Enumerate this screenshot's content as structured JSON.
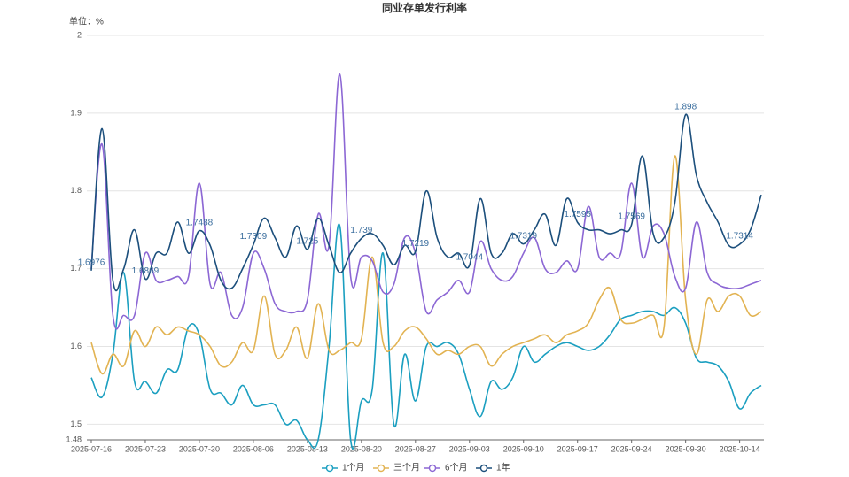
{
  "chart_data": {
    "type": "line",
    "title": "同业存单发行利率",
    "y_label": "单位：%",
    "categories": [
      "2025-07-16",
      null,
      null,
      null,
      null,
      "2025-07-23",
      null,
      null,
      null,
      null,
      "2025-07-30",
      null,
      null,
      null,
      null,
      "2025-08-06",
      null,
      null,
      null,
      null,
      "2025-08-13",
      null,
      null,
      null,
      null,
      "2025-08-20",
      null,
      null,
      null,
      null,
      "2025-08-27",
      null,
      null,
      null,
      null,
      "2025-09-03",
      null,
      null,
      null,
      null,
      "2025-09-10",
      null,
      null,
      null,
      null,
      "2025-09-17",
      null,
      null,
      null,
      null,
      "2025-09-24",
      null,
      null,
      null,
      null,
      "2025-09-30",
      null,
      null,
      null,
      null,
      "2025-10-14",
      null,
      null
    ],
    "series": [
      {
        "name": "1个月",
        "color": "#1b9fc0",
        "values": [
          1.56,
          1.535,
          1.59,
          1.695,
          1.555,
          1.555,
          1.54,
          1.57,
          1.57,
          1.625,
          1.615,
          1.545,
          1.54,
          1.525,
          1.55,
          1.525,
          1.525,
          1.525,
          1.5,
          1.505,
          1.48,
          1.48,
          1.6,
          1.755,
          1.48,
          1.53,
          1.545,
          1.72,
          1.5,
          1.59,
          1.53,
          1.6,
          1.6,
          1.605,
          1.59,
          1.545,
          1.51,
          1.555,
          1.545,
          1.56,
          1.6,
          1.58,
          1.59,
          1.6,
          1.605,
          1.6,
          1.595,
          1.6,
          1.615,
          1.635,
          1.64,
          1.645,
          1.645,
          1.64,
          1.65,
          1.63,
          1.585,
          1.58,
          1.575,
          1.555,
          1.52,
          1.54,
          1.55
        ]
      },
      {
        "name": "三个月",
        "color": "#e2b352",
        "values": [
          1.605,
          1.565,
          1.59,
          1.575,
          1.62,
          1.6,
          1.625,
          1.615,
          1.625,
          1.62,
          1.615,
          1.6,
          1.575,
          1.58,
          1.605,
          1.595,
          1.665,
          1.59,
          1.595,
          1.625,
          1.585,
          1.655,
          1.595,
          1.595,
          1.605,
          1.61,
          1.715,
          1.605,
          1.6,
          1.62,
          1.625,
          1.61,
          1.59,
          1.595,
          1.59,
          1.6,
          1.6,
          1.575,
          1.59,
          1.6,
          1.605,
          1.61,
          1.615,
          1.605,
          1.615,
          1.62,
          1.63,
          1.66,
          1.675,
          1.635,
          1.63,
          1.635,
          1.64,
          1.625,
          1.845,
          1.66,
          1.59,
          1.66,
          1.645,
          1.665,
          1.665,
          1.64,
          1.645
        ]
      },
      {
        "name": "6个月",
        "color": "#8c67d4",
        "values": [
          1.7,
          1.86,
          1.64,
          1.64,
          1.64,
          1.72,
          1.685,
          1.685,
          1.69,
          1.69,
          1.81,
          1.68,
          1.695,
          1.64,
          1.65,
          1.72,
          1.7,
          1.655,
          1.645,
          1.645,
          1.66,
          1.77,
          1.73,
          1.95,
          1.69,
          1.715,
          1.71,
          1.67,
          1.68,
          1.74,
          1.72,
          1.645,
          1.66,
          1.67,
          1.685,
          1.67,
          1.735,
          1.7,
          1.685,
          1.69,
          1.72,
          1.74,
          1.7,
          1.695,
          1.71,
          1.7,
          1.78,
          1.715,
          1.72,
          1.72,
          1.81,
          1.715,
          1.755,
          1.745,
          1.69,
          1.675,
          1.76,
          1.695,
          1.68,
          1.675,
          1.675,
          1.68,
          1.685
        ]
      },
      {
        "name": "1年",
        "color": "#1c4f7c",
        "values": [
          1.6976,
          1.88,
          1.685,
          1.7,
          1.75,
          1.6869,
          1.72,
          1.72,
          1.76,
          1.72,
          1.7488,
          1.73,
          1.685,
          1.675,
          1.7,
          1.7309,
          1.765,
          1.74,
          1.715,
          1.755,
          1.725,
          1.765,
          1.73,
          1.695,
          1.72,
          1.739,
          1.745,
          1.73,
          1.705,
          1.73,
          1.7219,
          1.8,
          1.74,
          1.715,
          1.72,
          1.7044,
          1.79,
          1.72,
          1.72,
          1.745,
          1.7319,
          1.75,
          1.77,
          1.73,
          1.79,
          1.7595,
          1.75,
          1.75,
          1.745,
          1.75,
          1.7569,
          1.845,
          1.745,
          1.74,
          1.785,
          1.898,
          1.82,
          1.785,
          1.76,
          1.73,
          1.7314,
          1.75,
          1.795
        ]
      }
    ],
    "ylim": [
      1.48,
      2
    ],
    "yticks": [
      1.48,
      1.5,
      1.6,
      1.7,
      1.8,
      1.9,
      2
    ],
    "grid": true
  }
}
